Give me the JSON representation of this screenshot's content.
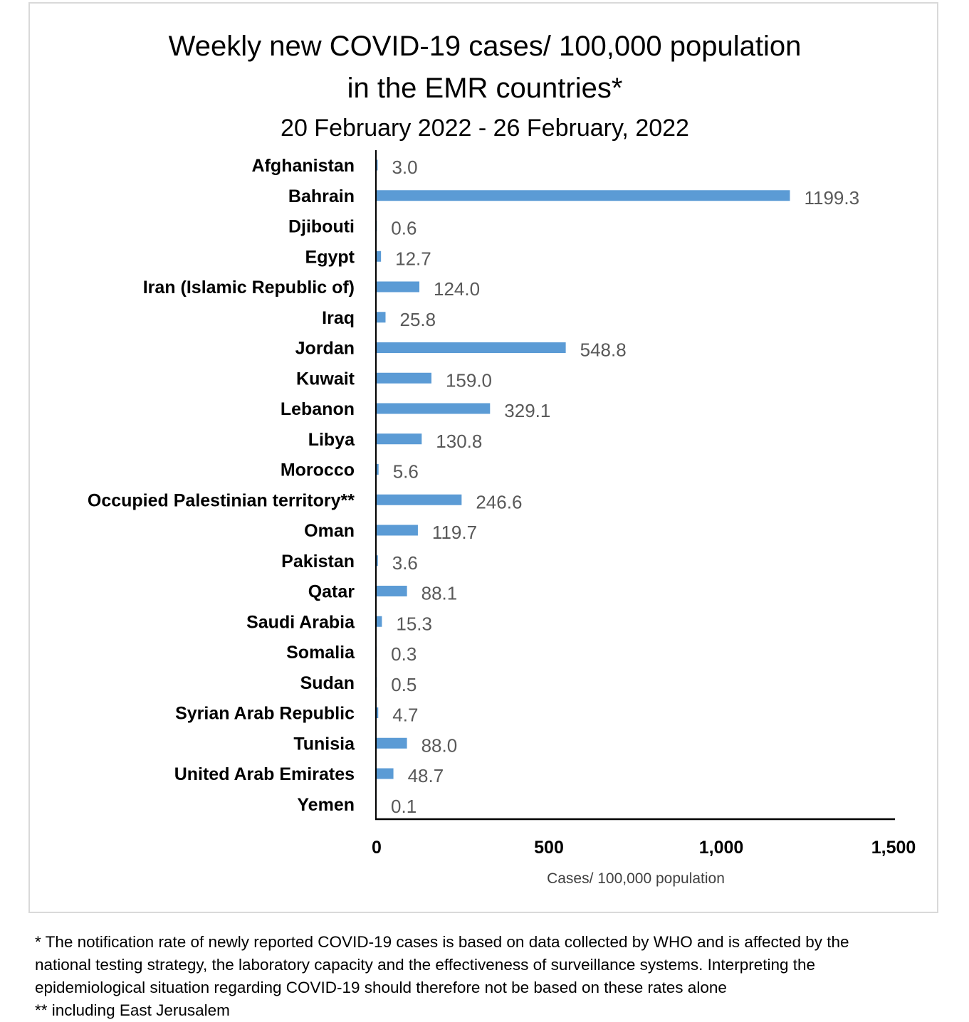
{
  "chart_data": {
    "type": "bar",
    "orientation": "horizontal",
    "title": "Weekly new COVID-19 cases/ 100,000 population",
    "title_line2": "in the EMR countries*",
    "subtitle": "20 February 2022 - 26 February, 2022",
    "xlabel": "Cases/ 100,000 population",
    "ylabel": "",
    "xlim": [
      0,
      1500
    ],
    "xticks": [
      0,
      500,
      1000,
      1500
    ],
    "xtick_labels": [
      "0",
      "500",
      "1,000",
      "1,500"
    ],
    "grid": false,
    "legend": "none",
    "bar_color": "#5b9bd5",
    "categories": [
      "Afghanistan",
      "Bahrain",
      "Djibouti",
      "Egypt",
      "Iran (Islamic Republic of)",
      "Iraq",
      "Jordan",
      "Kuwait",
      "Lebanon",
      "Libya",
      "Morocco",
      "Occupied Palestinian territory**",
      "Oman",
      "Pakistan",
      "Qatar",
      "Saudi Arabia",
      "Somalia",
      "Sudan",
      "Syrian Arab Republic",
      "Tunisia",
      "United Arab Emirates",
      "Yemen"
    ],
    "values": [
      3.0,
      1199.3,
      0.6,
      12.7,
      124.0,
      25.8,
      548.8,
      159.0,
      329.1,
      130.8,
      5.6,
      246.6,
      119.7,
      3.6,
      88.1,
      15.3,
      0.3,
      0.5,
      4.7,
      88.0,
      48.7,
      0.1
    ],
    "value_labels": [
      "3.0",
      "1199.3",
      "0.6",
      "12.7",
      "124.0",
      "25.8",
      "548.8",
      "159.0",
      "329.1",
      "130.8",
      "5.6",
      "246.6",
      "119.7",
      "3.6",
      "88.1",
      "15.3",
      "0.3",
      "0.5",
      "4.7",
      "88.0",
      "48.7",
      "0.1"
    ]
  },
  "footnotes": {
    "line1": "* The notification rate of newly reported COVID-19 cases is based on data collected by WHO and is affected by the",
    "line2": "national testing strategy, the laboratory capacity and the effectiveness of surveillance systems. Interpreting the",
    "line3": "epidemiological situation regarding COVID-19 should therefore not be based on these rates alone",
    "line4": "** including East Jerusalem"
  }
}
